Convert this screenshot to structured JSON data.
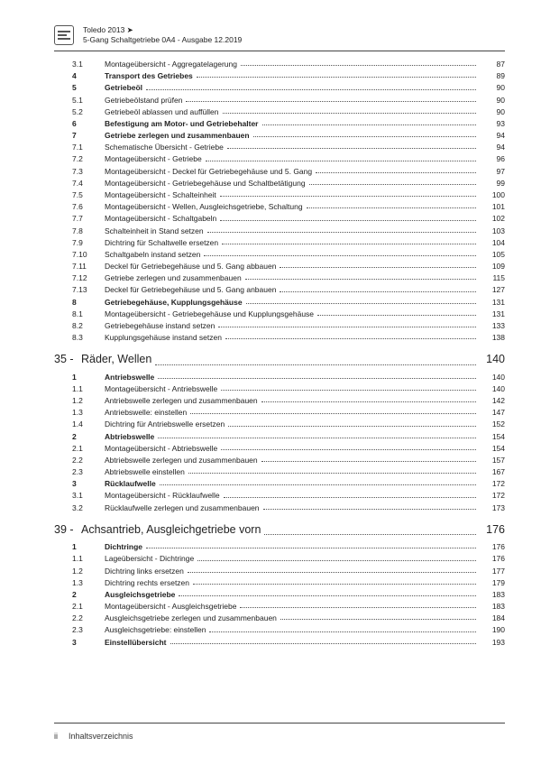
{
  "header": {
    "model": "Toledo 2013 ➤",
    "subtitle": "5-Gang Schaltgetriebe 0A4 - Ausgabe 12.2019"
  },
  "section1": [
    {
      "num": "3.1",
      "title": "Montageübersicht - Aggregatelagerung",
      "page": "87",
      "bold": false
    },
    {
      "num": "4",
      "title": "Transport des Getriebes",
      "page": "89",
      "bold": true
    },
    {
      "num": "5",
      "title": "Getriebeöl",
      "page": "90",
      "bold": true
    },
    {
      "num": "5.1",
      "title": "Getriebeölstand prüfen",
      "page": "90",
      "bold": false
    },
    {
      "num": "5.2",
      "title": "Getriebeöl ablassen und auffüllen",
      "page": "90",
      "bold": false
    },
    {
      "num": "6",
      "title": "Befestigung am Motor- und Getriebehalter",
      "page": "93",
      "bold": true
    },
    {
      "num": "7",
      "title": "Getriebe zerlegen und zusammenbauen",
      "page": "94",
      "bold": true
    },
    {
      "num": "7.1",
      "title": "Schematische Übersicht - Getriebe",
      "page": "94",
      "bold": false
    },
    {
      "num": "7.2",
      "title": "Montageübersicht - Getriebe",
      "page": "96",
      "bold": false
    },
    {
      "num": "7.3",
      "title": "Montageübersicht - Deckel für Getriebegehäuse und 5. Gang",
      "page": "97",
      "bold": false
    },
    {
      "num": "7.4",
      "title": "Montageübersicht - Getriebegehäuse und Schaltbetätigung",
      "page": "99",
      "bold": false
    },
    {
      "num": "7.5",
      "title": "Montageübersicht - Schalteinheit",
      "page": "100",
      "bold": false
    },
    {
      "num": "7.6",
      "title": "Montageübersicht - Wellen, Ausgleichsgetriebe, Schaltung",
      "page": "101",
      "bold": false
    },
    {
      "num": "7.7",
      "title": "Montageübersicht - Schaltgabeln",
      "page": "102",
      "bold": false
    },
    {
      "num": "7.8",
      "title": "Schalteinheit in Stand setzen",
      "page": "103",
      "bold": false
    },
    {
      "num": "7.9",
      "title": "Dichtring für Schaltwelle ersetzen",
      "page": "104",
      "bold": false
    },
    {
      "num": "7.10",
      "title": "Schaltgabeln instand setzen",
      "page": "105",
      "bold": false
    },
    {
      "num": "7.11",
      "title": "Deckel für Getriebegehäuse und 5. Gang abbauen",
      "page": "109",
      "bold": false
    },
    {
      "num": "7.12",
      "title": "Getriebe zerlegen und zusammenbauen",
      "page": "115",
      "bold": false
    },
    {
      "num": "7.13",
      "title": "Deckel für Getriebegehäuse und 5. Gang anbauen",
      "page": "127",
      "bold": false
    },
    {
      "num": "8",
      "title": "Getriebegehäuse, Kupplungsgehäuse",
      "page": "131",
      "bold": true
    },
    {
      "num": "8.1",
      "title": "Montageübersicht - Getriebegehäuse und Kupplungsgehäuse",
      "page": "131",
      "bold": false
    },
    {
      "num": "8.2",
      "title": "Getriebegehäuse instand setzen",
      "page": "133",
      "bold": false
    },
    {
      "num": "8.3",
      "title": "Kupplungsgehäuse instand setzen",
      "page": "138",
      "bold": false
    }
  ],
  "chapter35": {
    "num": "35 -",
    "title": "Räder, Wellen",
    "page": "140"
  },
  "section35": [
    {
      "num": "1",
      "title": "Antriebswelle",
      "page": "140",
      "bold": true
    },
    {
      "num": "1.1",
      "title": "Montageübersicht - Antriebswelle",
      "page": "140",
      "bold": false
    },
    {
      "num": "1.2",
      "title": "Antriebswelle zerlegen und zusammenbauen",
      "page": "142",
      "bold": false
    },
    {
      "num": "1.3",
      "title": "Antriebswelle: einstellen",
      "page": "147",
      "bold": false
    },
    {
      "num": "1.4",
      "title": "Dichtring für Antriebswelle ersetzen",
      "page": "152",
      "bold": false
    },
    {
      "num": "2",
      "title": "Abtriebswelle",
      "page": "154",
      "bold": true
    },
    {
      "num": "2.1",
      "title": "Montageübersicht - Abtriebswelle",
      "page": "154",
      "bold": false
    },
    {
      "num": "2.2",
      "title": "Abtriebswelle zerlegen und zusammenbauen",
      "page": "157",
      "bold": false
    },
    {
      "num": "2.3",
      "title": "Abtriebswelle einstellen",
      "page": "167",
      "bold": false
    },
    {
      "num": "3",
      "title": "Rücklaufwelle",
      "page": "172",
      "bold": true
    },
    {
      "num": "3.1",
      "title": "Montageübersicht - Rücklaufwelle",
      "page": "172",
      "bold": false
    },
    {
      "num": "3.2",
      "title": "Rücklaufwelle zerlegen und zusammenbauen",
      "page": "173",
      "bold": false
    }
  ],
  "chapter39": {
    "num": "39 -",
    "title": "Achsantrieb, Ausgleichgetriebe vorn",
    "page": "176"
  },
  "section39": [
    {
      "num": "1",
      "title": "Dichtringe",
      "page": "176",
      "bold": true
    },
    {
      "num": "1.1",
      "title": "Lageübersicht - Dichtringe",
      "page": "176",
      "bold": false
    },
    {
      "num": "1.2",
      "title": "Dichtring links ersetzen",
      "page": "177",
      "bold": false
    },
    {
      "num": "1.3",
      "title": "Dichtring rechts ersetzen",
      "page": "179",
      "bold": false
    },
    {
      "num": "2",
      "title": "Ausgleichsgetriebe",
      "page": "183",
      "bold": true
    },
    {
      "num": "2.1",
      "title": "Montageübersicht - Ausgleichsgetriebe",
      "page": "183",
      "bold": false
    },
    {
      "num": "2.2",
      "title": "Ausgleichsgetriebe zerlegen und zusammenbauen",
      "page": "184",
      "bold": false
    },
    {
      "num": "2.3",
      "title": "Ausgleichsgetriebe: einstellen",
      "page": "190",
      "bold": false
    },
    {
      "num": "3",
      "title": "Einstellübersicht",
      "page": "193",
      "bold": true
    }
  ],
  "footer": {
    "pagenum": "ii",
    "label": "Inhaltsverzeichnis"
  }
}
